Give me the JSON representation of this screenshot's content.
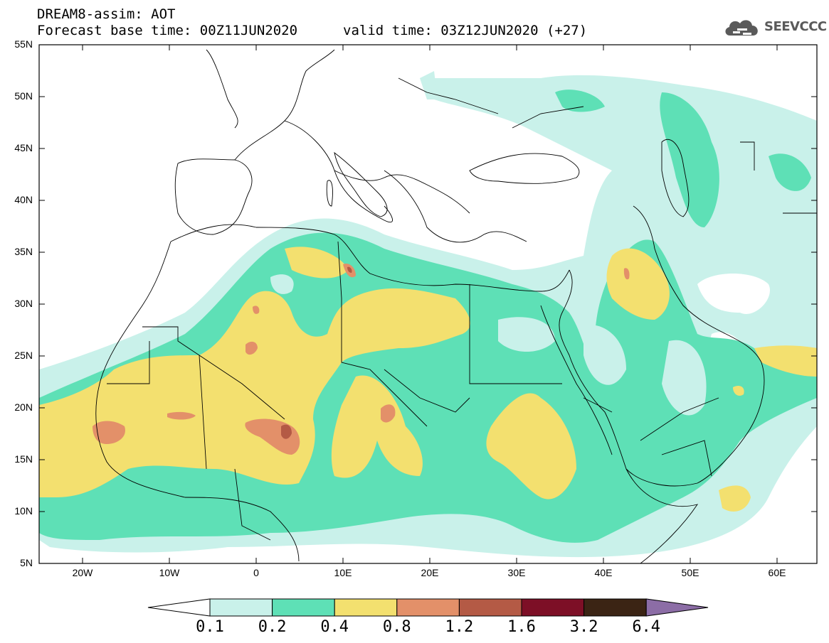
{
  "header": {
    "title": "DREAM8-assim: AOT",
    "base_time": "Forecast base time: 00Z11JUN2020",
    "valid_time": "valid time: 03Z12JUN2020 (+27)",
    "logo_text": "SEEVCCC",
    "logo_icon": "cloud-icon"
  },
  "map": {
    "lat_ticks": [
      "55N",
      "50N",
      "45N",
      "40N",
      "35N",
      "30N",
      "25N",
      "20N",
      "15N",
      "10N",
      "5N"
    ],
    "lon_ticks": [
      "20W",
      "10W",
      "0",
      "10E",
      "20E",
      "30E",
      "40E",
      "50E",
      "60E"
    ]
  },
  "colorbar": {
    "labels": [
      "0.1",
      "0.2",
      "0.4",
      "0.8",
      "1.2",
      "1.6",
      "3.2",
      "6.4"
    ],
    "colors": [
      "#ffffff",
      "#c9f1ea",
      "#5ee0b6",
      "#f3e06f",
      "#e39069",
      "#b45a45",
      "#7d0f26",
      "#3b2414",
      "#8c6da6"
    ]
  }
}
